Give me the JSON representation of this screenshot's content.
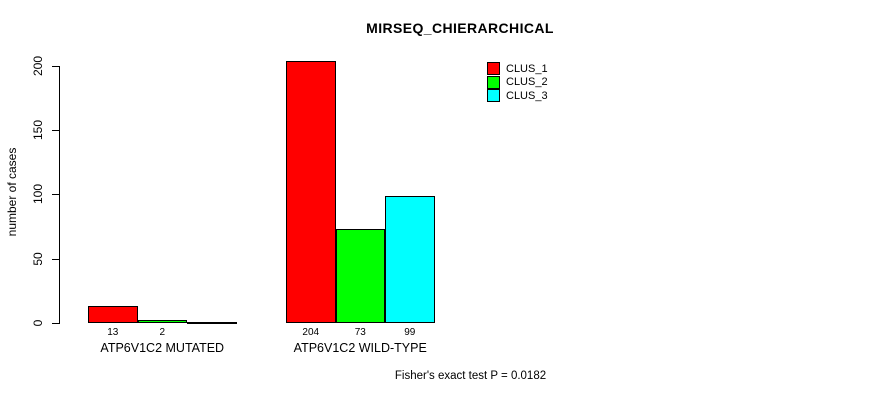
{
  "title": "MIRSEQ_CHIERARCHICAL",
  "y_axis": {
    "label": "number of cases",
    "tick_labels": [
      "0",
      "50",
      "100",
      "150",
      "200"
    ]
  },
  "footnote": "Fisher's exact test P = 0.0182",
  "chart_data": {
    "type": "bar",
    "title": "MIRSEQ_CHIERARCHICAL",
    "xlabel": "",
    "ylabel": "number of cases",
    "categories": [
      "ATP6V1C2 MUTATED",
      "ATP6V1C2 WILD-TYPE"
    ],
    "series": [
      {
        "name": "CLUS_1",
        "color": "#ff0000",
        "values": [
          13,
          204
        ]
      },
      {
        "name": "CLUS_2",
        "color": "#00ff00",
        "values": [
          2,
          73
        ]
      },
      {
        "name": "CLUS_3",
        "color": "#00ffff",
        "values": [
          0,
          99
        ]
      }
    ],
    "bar_value_labels": [
      [
        "13",
        "2",
        ""
      ],
      [
        "204",
        "73",
        "99"
      ]
    ],
    "yticks": [
      0,
      50,
      100,
      150,
      200
    ],
    "ylim": [
      0,
      205
    ],
    "grid": false,
    "legend_position": "top-right",
    "annotation": "Fisher's exact test P = 0.0182"
  }
}
